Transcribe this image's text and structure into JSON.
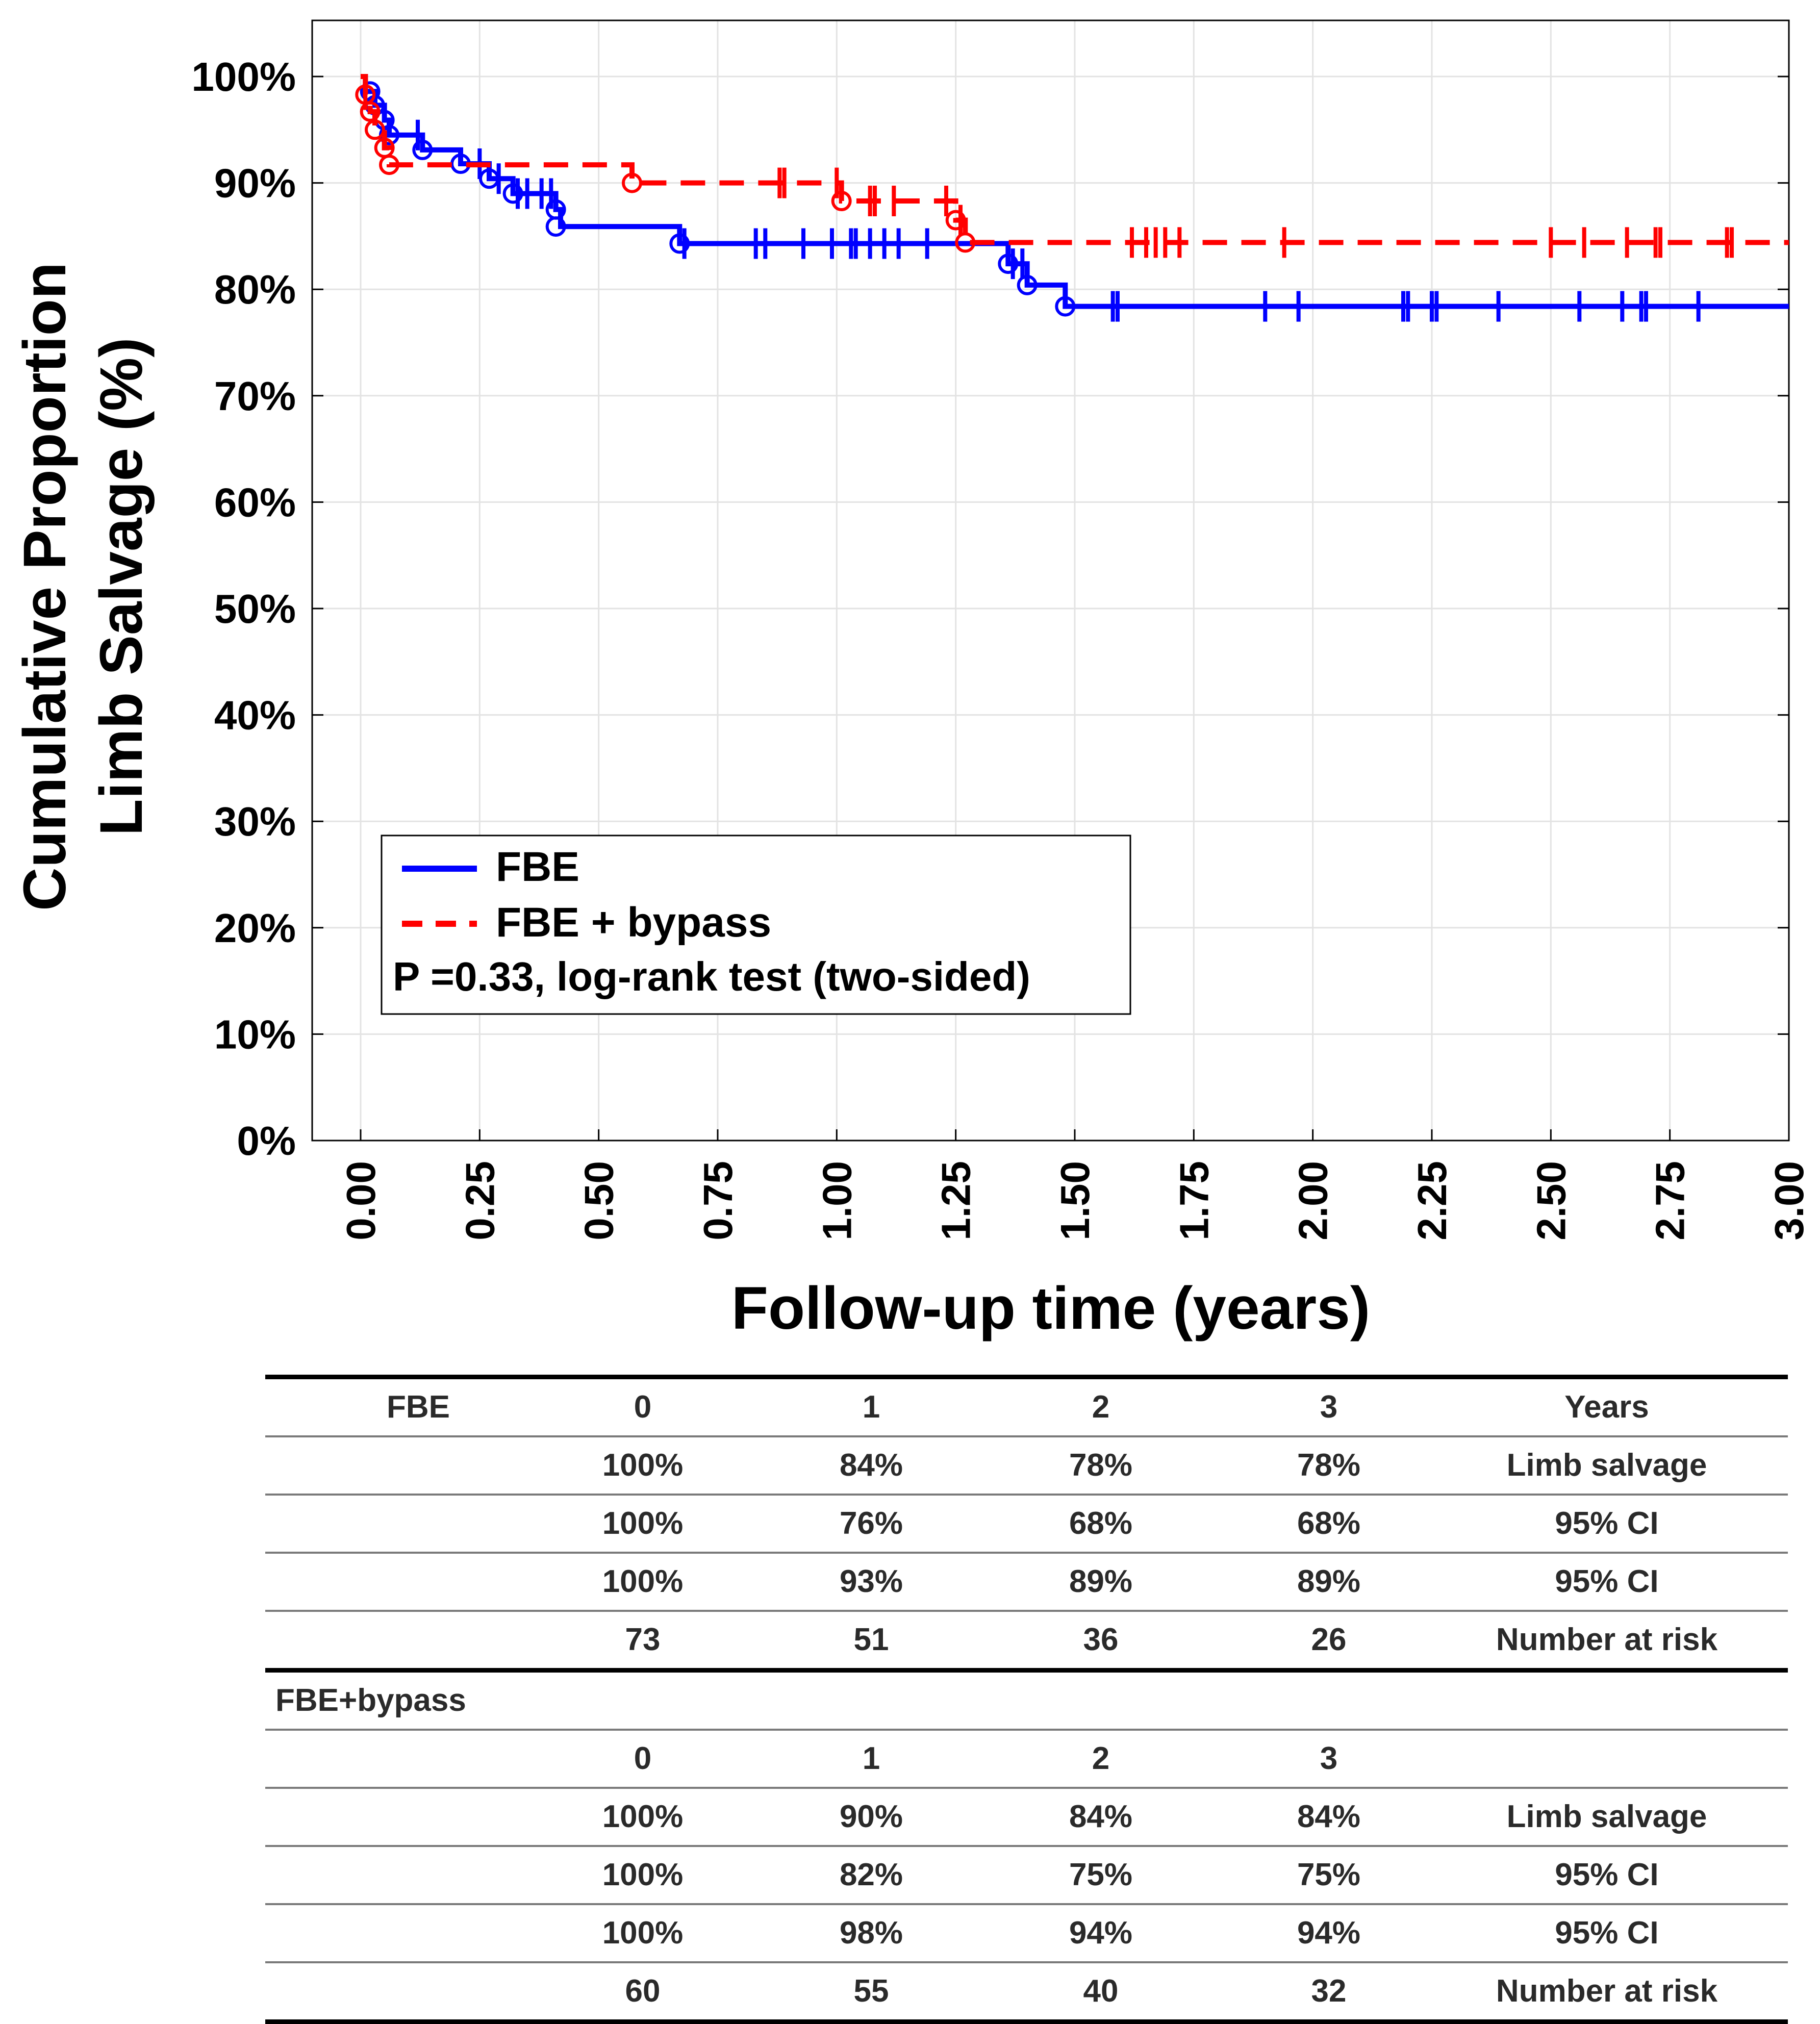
{
  "chart_data": {
    "type": "line",
    "subtype": "kaplan-meier",
    "ylabel_line1": "Cumulative Proportion",
    "ylabel_line2": "Limb Salvage (%)",
    "xlabel": "Follow-up time (years)",
    "xlim": [
      0,
      3
    ],
    "ylim": [
      0,
      100
    ],
    "x_ticks": [
      "0.00",
      "0.25",
      "0.50",
      "0.75",
      "1.00",
      "1.25",
      "1.50",
      "1.75",
      "2.00",
      "2.25",
      "2.50",
      "2.75",
      "3.00"
    ],
    "y_ticks": [
      "0%",
      "10%",
      "20%",
      "30%",
      "40%",
      "50%",
      "60%",
      "70%",
      "80%",
      "90%",
      "100%"
    ],
    "grid": true,
    "legend_position": "lower-left",
    "annotation": "P =0.33, log-rank test (two-sided)",
    "series": [
      {
        "name": "FBE",
        "color": "#0000ff",
        "line_style": "solid",
        "steps": [
          [
            0,
            100
          ],
          [
            0.01,
            98.6
          ],
          [
            0.03,
            97.3
          ],
          [
            0.05,
            95.9
          ],
          [
            0.06,
            94.5
          ],
          [
            0.13,
            93.1
          ],
          [
            0.21,
            91.8
          ],
          [
            0.27,
            90.4
          ],
          [
            0.32,
            89.0
          ],
          [
            0.41,
            87.5
          ],
          [
            0.42,
            85.9
          ],
          [
            0.67,
            84.3
          ],
          [
            1.36,
            82.4
          ],
          [
            1.4,
            80.4
          ],
          [
            1.48,
            78.4
          ],
          [
            3.0,
            78.4
          ]
        ],
        "events": [
          [
            0.02,
            98.6
          ],
          [
            0.03,
            97.3
          ],
          [
            0.05,
            95.9
          ],
          [
            0.06,
            94.5
          ],
          [
            0.13,
            93.1
          ],
          [
            0.21,
            91.8
          ],
          [
            0.27,
            90.4
          ],
          [
            0.32,
            89.0
          ],
          [
            0.41,
            87.5
          ],
          [
            0.41,
            85.9
          ],
          [
            0.67,
            84.3
          ],
          [
            1.36,
            82.4
          ],
          [
            1.4,
            80.4
          ],
          [
            1.48,
            78.4
          ]
        ],
        "censored": [
          0.12,
          0.25,
          0.29,
          0.33,
          0.35,
          0.38,
          0.4,
          0.68,
          0.83,
          0.85,
          0.93,
          0.99,
          1.03,
          1.04,
          1.07,
          1.1,
          1.13,
          1.19,
          1.37,
          1.39,
          1.58,
          1.59,
          1.9,
          1.97,
          2.19,
          2.2,
          2.25,
          2.26,
          2.39,
          2.56,
          2.65,
          2.69,
          2.7,
          2.81
        ]
      },
      {
        "name": "FBE + bypass",
        "color": "#ff0000",
        "line_style": "dashed",
        "steps": [
          [
            0,
            100
          ],
          [
            0.01,
            98.3
          ],
          [
            0.02,
            96.7
          ],
          [
            0.03,
            95.0
          ],
          [
            0.05,
            93.3
          ],
          [
            0.06,
            91.7
          ],
          [
            0.57,
            90.0
          ],
          [
            1.01,
            88.3
          ],
          [
            1.25,
            86.5
          ],
          [
            1.27,
            84.4
          ],
          [
            3.0,
            84.4
          ]
        ],
        "events": [
          [
            0.01,
            98.3
          ],
          [
            0.02,
            96.7
          ],
          [
            0.03,
            95.0
          ],
          [
            0.05,
            93.3
          ],
          [
            0.06,
            91.7
          ],
          [
            0.57,
            90.0
          ],
          [
            1.01,
            88.3
          ],
          [
            1.25,
            86.5
          ],
          [
            1.27,
            84.4
          ]
        ],
        "censored": [
          0.01,
          0.88,
          0.89,
          1.0,
          1.07,
          1.08,
          1.12,
          1.23,
          1.26,
          1.62,
          1.65,
          1.67,
          1.69,
          1.72,
          1.94,
          2.5,
          2.57,
          2.66,
          2.72,
          2.73,
          2.87,
          2.88
        ]
      }
    ]
  },
  "table": {
    "fbe": {
      "title": "FBE",
      "header": [
        "0",
        "1",
        "2",
        "3",
        "Years"
      ],
      "rows": [
        [
          "100%",
          "84%",
          "78%",
          "78%",
          "Limb salvage"
        ],
        [
          "100%",
          "76%",
          "68%",
          "68%",
          "95% CI"
        ],
        [
          "100%",
          "93%",
          "89%",
          "89%",
          "95% CI"
        ],
        [
          "73",
          "51",
          "36",
          "26",
          "Number at risk"
        ]
      ]
    },
    "bypass": {
      "title": "FBE+bypass",
      "header": [
        "0",
        "1",
        "2",
        "3"
      ],
      "rows": [
        [
          "100%",
          "90%",
          "84%",
          "84%",
          "Limb salvage"
        ],
        [
          "100%",
          "82%",
          "75%",
          "75%",
          "95% CI"
        ],
        [
          "100%",
          "98%",
          "94%",
          "94%",
          "95% CI"
        ],
        [
          "60",
          "55",
          "40",
          "32",
          "Number at risk"
        ]
      ]
    }
  }
}
